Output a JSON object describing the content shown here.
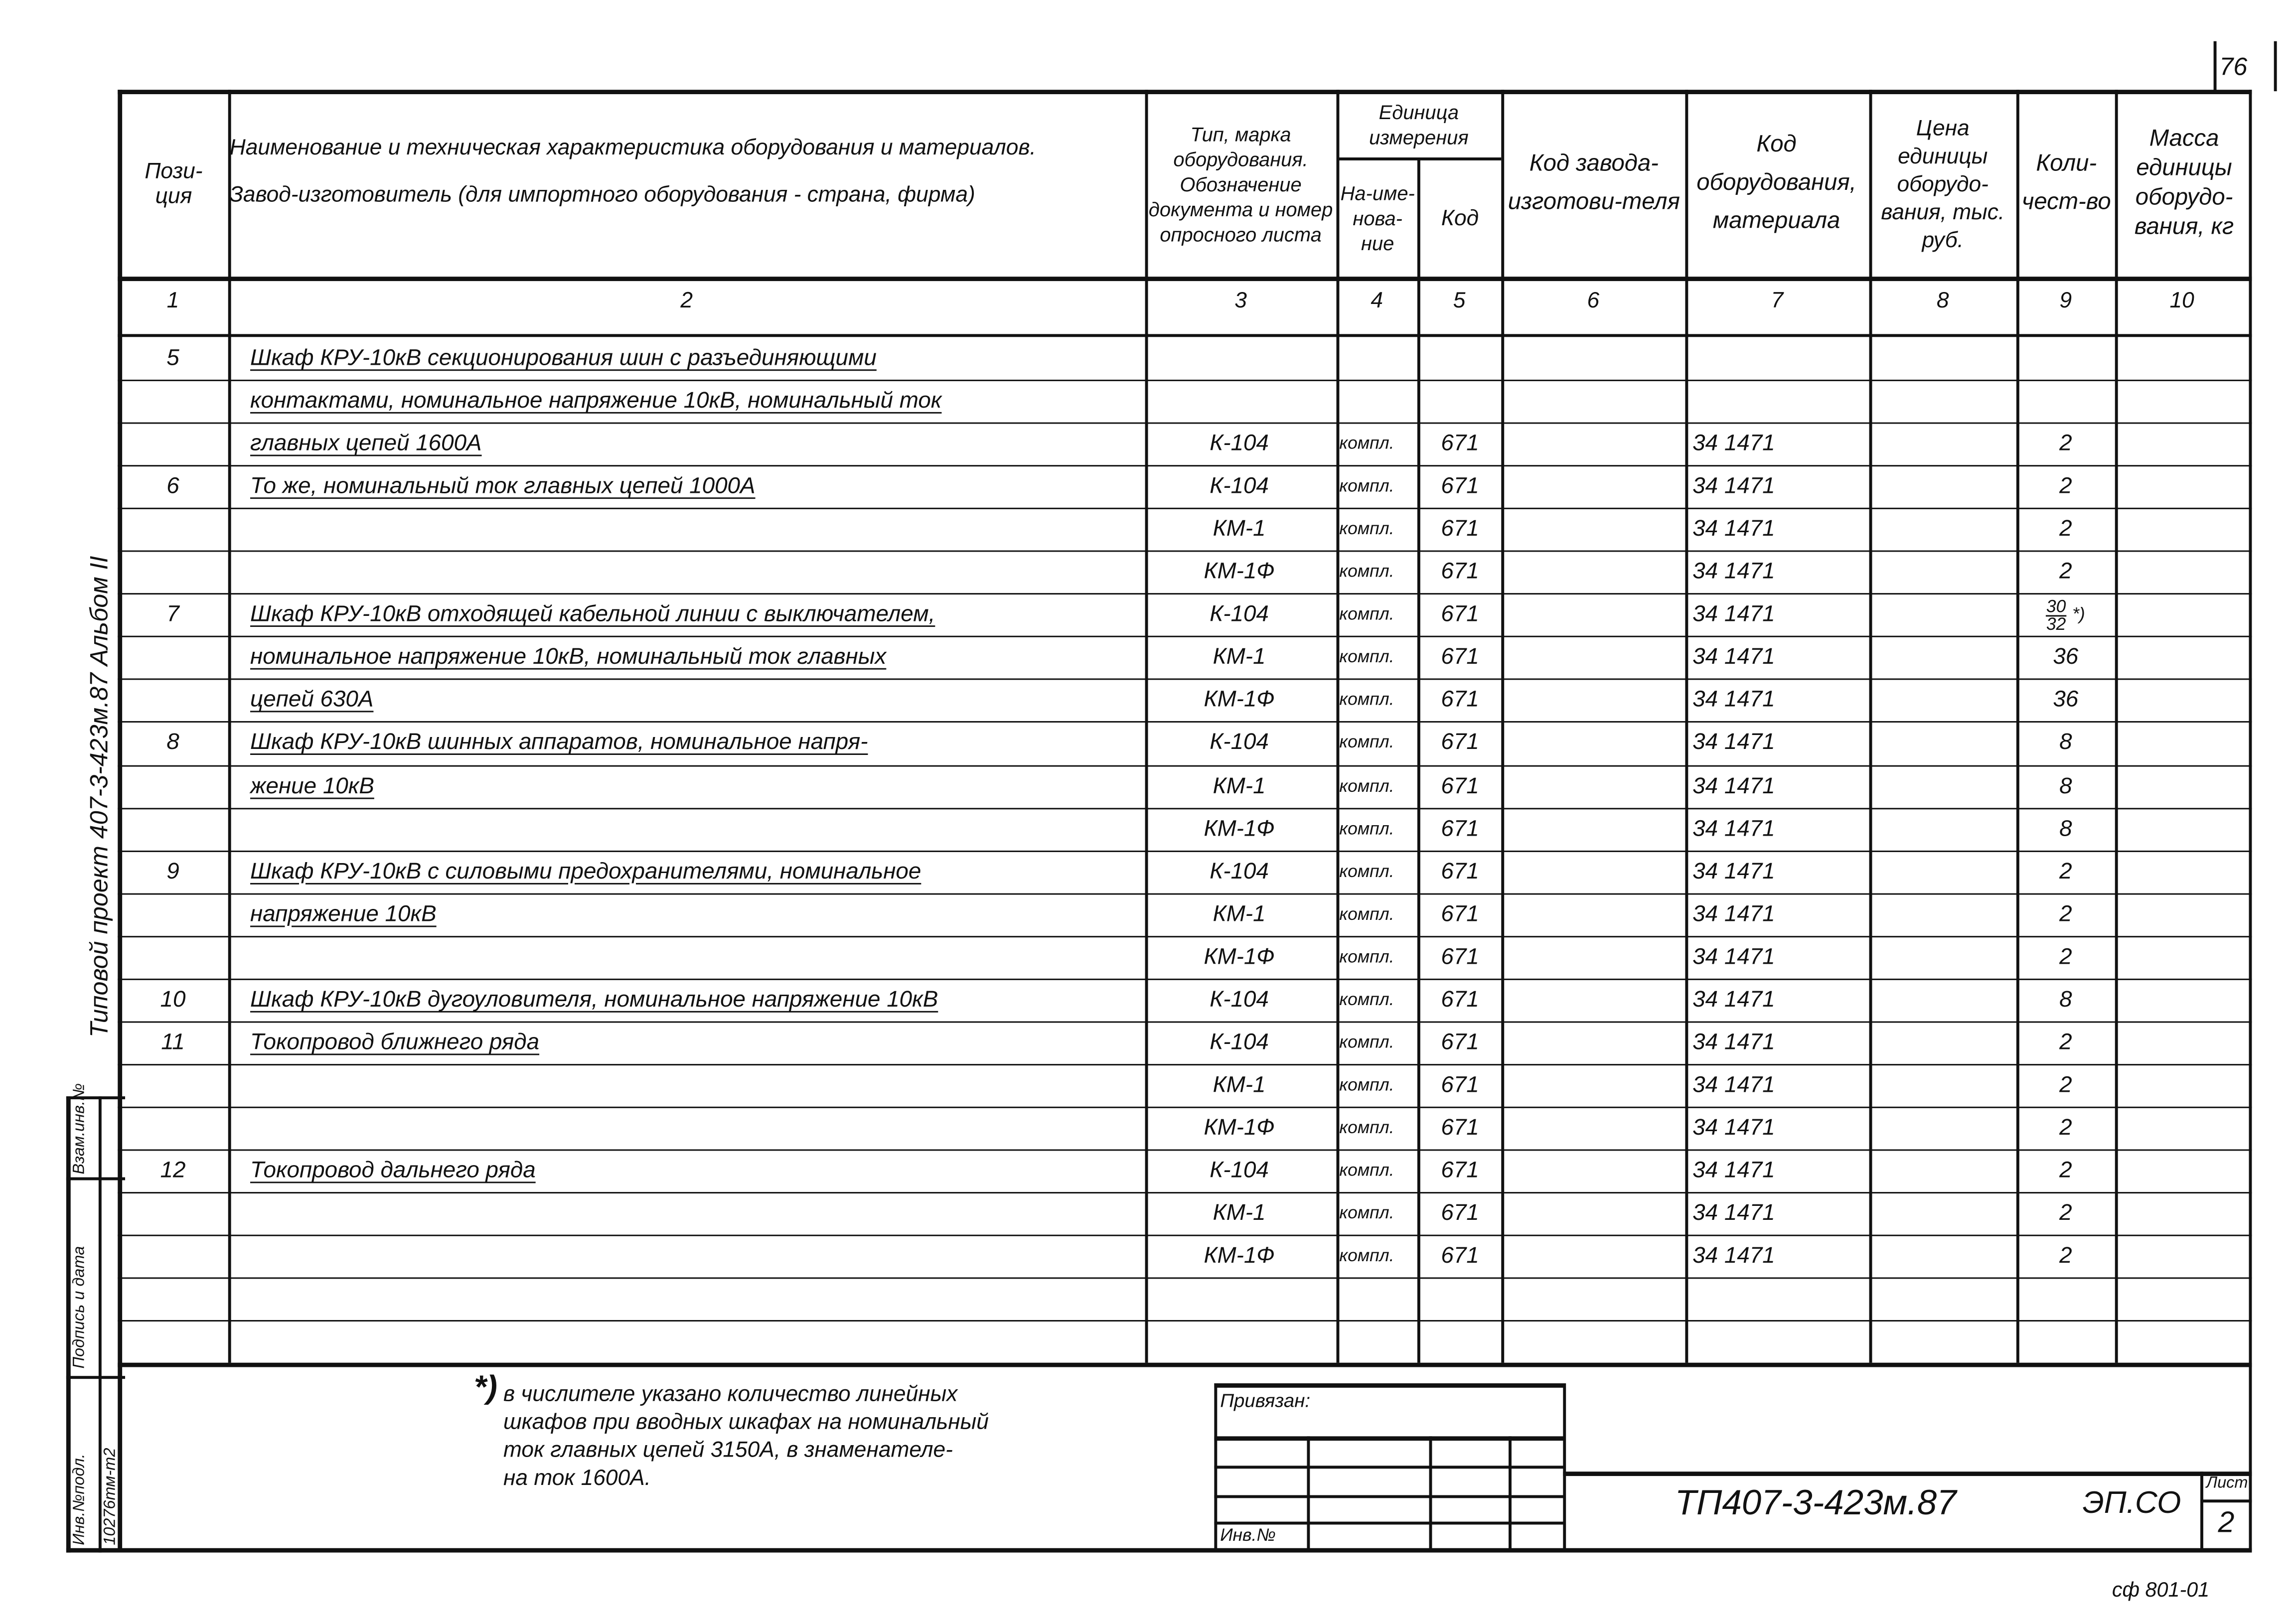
{
  "sheet_top_number": "76",
  "margin": {
    "project_title": "Типовой проект   407-3-423м.87   Альбом II",
    "stamp_labels": [
      "Взам.инв.№",
      "Подпись и дата",
      "Инв.№подл."
    ],
    "inv_value": "10276тм-т2"
  },
  "header": {
    "col1": "Пози-\nция",
    "col2_line1": "Наименование и техническая характеристика оборудования и материалов.",
    "col2_line2": "Завод-изготовитель (для импортного оборудования - страна, фирма)",
    "col3": "Тип, марка оборудования. Обозначение документа и номер опросного листа",
    "unit_group": "Единица измерения",
    "col4": "На-име-нова-ние",
    "col5": "Код",
    "col6": "Код завода-изготови-теля",
    "col7": "Код оборудования, материала",
    "col8": "Цена единицы оборудо-вания, тыс. руб.",
    "col9": "Коли-чест-во",
    "col10": "Масса единицы оборудо-вания, кг",
    "numbers": [
      "1",
      "2",
      "3",
      "4",
      "5",
      "6",
      "7",
      "8",
      "9",
      "10"
    ]
  },
  "rows": [
    {
      "pos": "5",
      "name": "Шкаф КРУ-10кВ секционирования шин с разъединяющими",
      "type": "",
      "unit": "",
      "code": "",
      "mat": "",
      "qty": ""
    },
    {
      "pos": "",
      "name": "контактами, номинальное напряжение 10кВ, номинальный ток",
      "type": "",
      "unit": "",
      "code": "",
      "mat": "",
      "qty": ""
    },
    {
      "pos": "",
      "name": "главных цепей 1600А",
      "type": "К-104",
      "unit": "компл.",
      "code": "671",
      "mat": "34 1471",
      "qty": "2"
    },
    {
      "pos": "6",
      "name": "То же, номинальный ток главных цепей 1000А",
      "type": "К-104",
      "unit": "компл.",
      "code": "671",
      "mat": "34 1471",
      "qty": "2"
    },
    {
      "pos": "",
      "name": "",
      "type": "КМ-1",
      "unit": "компл.",
      "code": "671",
      "mat": "34 1471",
      "qty": "2"
    },
    {
      "pos": "",
      "name": "",
      "type": "КМ-1Ф",
      "unit": "компл.",
      "code": "671",
      "mat": "34 1471",
      "qty": "2"
    },
    {
      "pos": "7",
      "name": "Шкаф КРУ-10кВ отходящей кабельной линии с выключателем,",
      "type": "К-104",
      "unit": "компл.",
      "code": "671",
      "mat": "34 1471",
      "qty": "",
      "qty_num": "30",
      "qty_den": "32",
      "qty_note": "*)"
    },
    {
      "pos": "",
      "name": "номинальное напряжение 10кВ, номинальный ток главных",
      "type": "КМ-1",
      "unit": "компл.",
      "code": "671",
      "mat": "34 1471",
      "qty": "36"
    },
    {
      "pos": "",
      "name": "цепей 630А",
      "type": "КМ-1Ф",
      "unit": "компл.",
      "code": "671",
      "mat": "34 1471",
      "qty": "36"
    },
    {
      "pos": "8",
      "name": "Шкаф КРУ-10кВ шинных аппаратов, номинальное напря-",
      "type": "К-104",
      "unit": "компл.",
      "code": "671",
      "mat": "34 1471",
      "qty": "8"
    },
    {
      "pos": "",
      "name": "жение 10кВ",
      "type": "КМ-1",
      "unit": "компл.",
      "code": "671",
      "mat": "34 1471",
      "qty": "8"
    },
    {
      "pos": "",
      "name": "",
      "type": "КМ-1Ф",
      "unit": "компл.",
      "code": "671",
      "mat": "34 1471",
      "qty": "8"
    },
    {
      "pos": "9",
      "name": "Шкаф КРУ-10кВ с силовыми предохранителями, номинальное",
      "type": "К-104",
      "unit": "компл.",
      "code": "671",
      "mat": "34 1471",
      "qty": "2"
    },
    {
      "pos": "",
      "name": "напряжение 10кВ",
      "type": "КМ-1",
      "unit": "компл.",
      "code": "671",
      "mat": "34 1471",
      "qty": "2"
    },
    {
      "pos": "",
      "name": "",
      "type": "КМ-1Ф",
      "unit": "компл.",
      "code": "671",
      "mat": "34 1471",
      "qty": "2"
    },
    {
      "pos": "10",
      "name": "Шкаф КРУ-10кВ дугоуловителя, номинальное напряжение 10кВ",
      "type": "К-104",
      "unit": "компл.",
      "code": "671",
      "mat": "34 1471",
      "qty": "8"
    },
    {
      "pos": "11",
      "name": "Токопровод ближнего ряда",
      "type": "К-104",
      "unit": "компл.",
      "code": "671",
      "mat": "34 1471",
      "qty": "2"
    },
    {
      "pos": "",
      "name": "",
      "type": "КМ-1",
      "unit": "компл.",
      "code": "671",
      "mat": "34 1471",
      "qty": "2"
    },
    {
      "pos": "",
      "name": "",
      "type": "КМ-1Ф",
      "unit": "компл.",
      "code": "671",
      "mat": "34 1471",
      "qty": "2"
    },
    {
      "pos": "12",
      "name": "Токопровод дальнего ряда",
      "type": "К-104",
      "unit": "компл.",
      "code": "671",
      "mat": "34 1471",
      "qty": "2"
    },
    {
      "pos": "",
      "name": "",
      "type": "КМ-1",
      "unit": "компл.",
      "code": "671",
      "mat": "34 1471",
      "qty": "2"
    },
    {
      "pos": "",
      "name": "",
      "type": "КМ-1Ф",
      "unit": "компл.",
      "code": "671",
      "mat": "34 1471",
      "qty": "2"
    },
    {
      "pos": "",
      "name": "",
      "type": "",
      "unit": "",
      "code": "",
      "mat": "",
      "qty": ""
    },
    {
      "pos": "",
      "name": "",
      "type": "",
      "unit": "",
      "code": "",
      "mat": "",
      "qty": ""
    }
  ],
  "footnote": {
    "marker": "*)",
    "lines": [
      "в числителе указано количество линейных",
      "шкафов при вводных шкафах на номинальный",
      "ток главных цепей 3150А, в знаменателе-",
      "на ток 1600А."
    ]
  },
  "stamp": {
    "attached_label": "Привязан:",
    "inv_label": "Инв.№"
  },
  "title_block": {
    "doc_code": "ТП407-3-423м.87",
    "mark": "ЭП.СО",
    "sheet_label": "Лист",
    "sheet_number": "2"
  },
  "format_code": "сф 801-01"
}
